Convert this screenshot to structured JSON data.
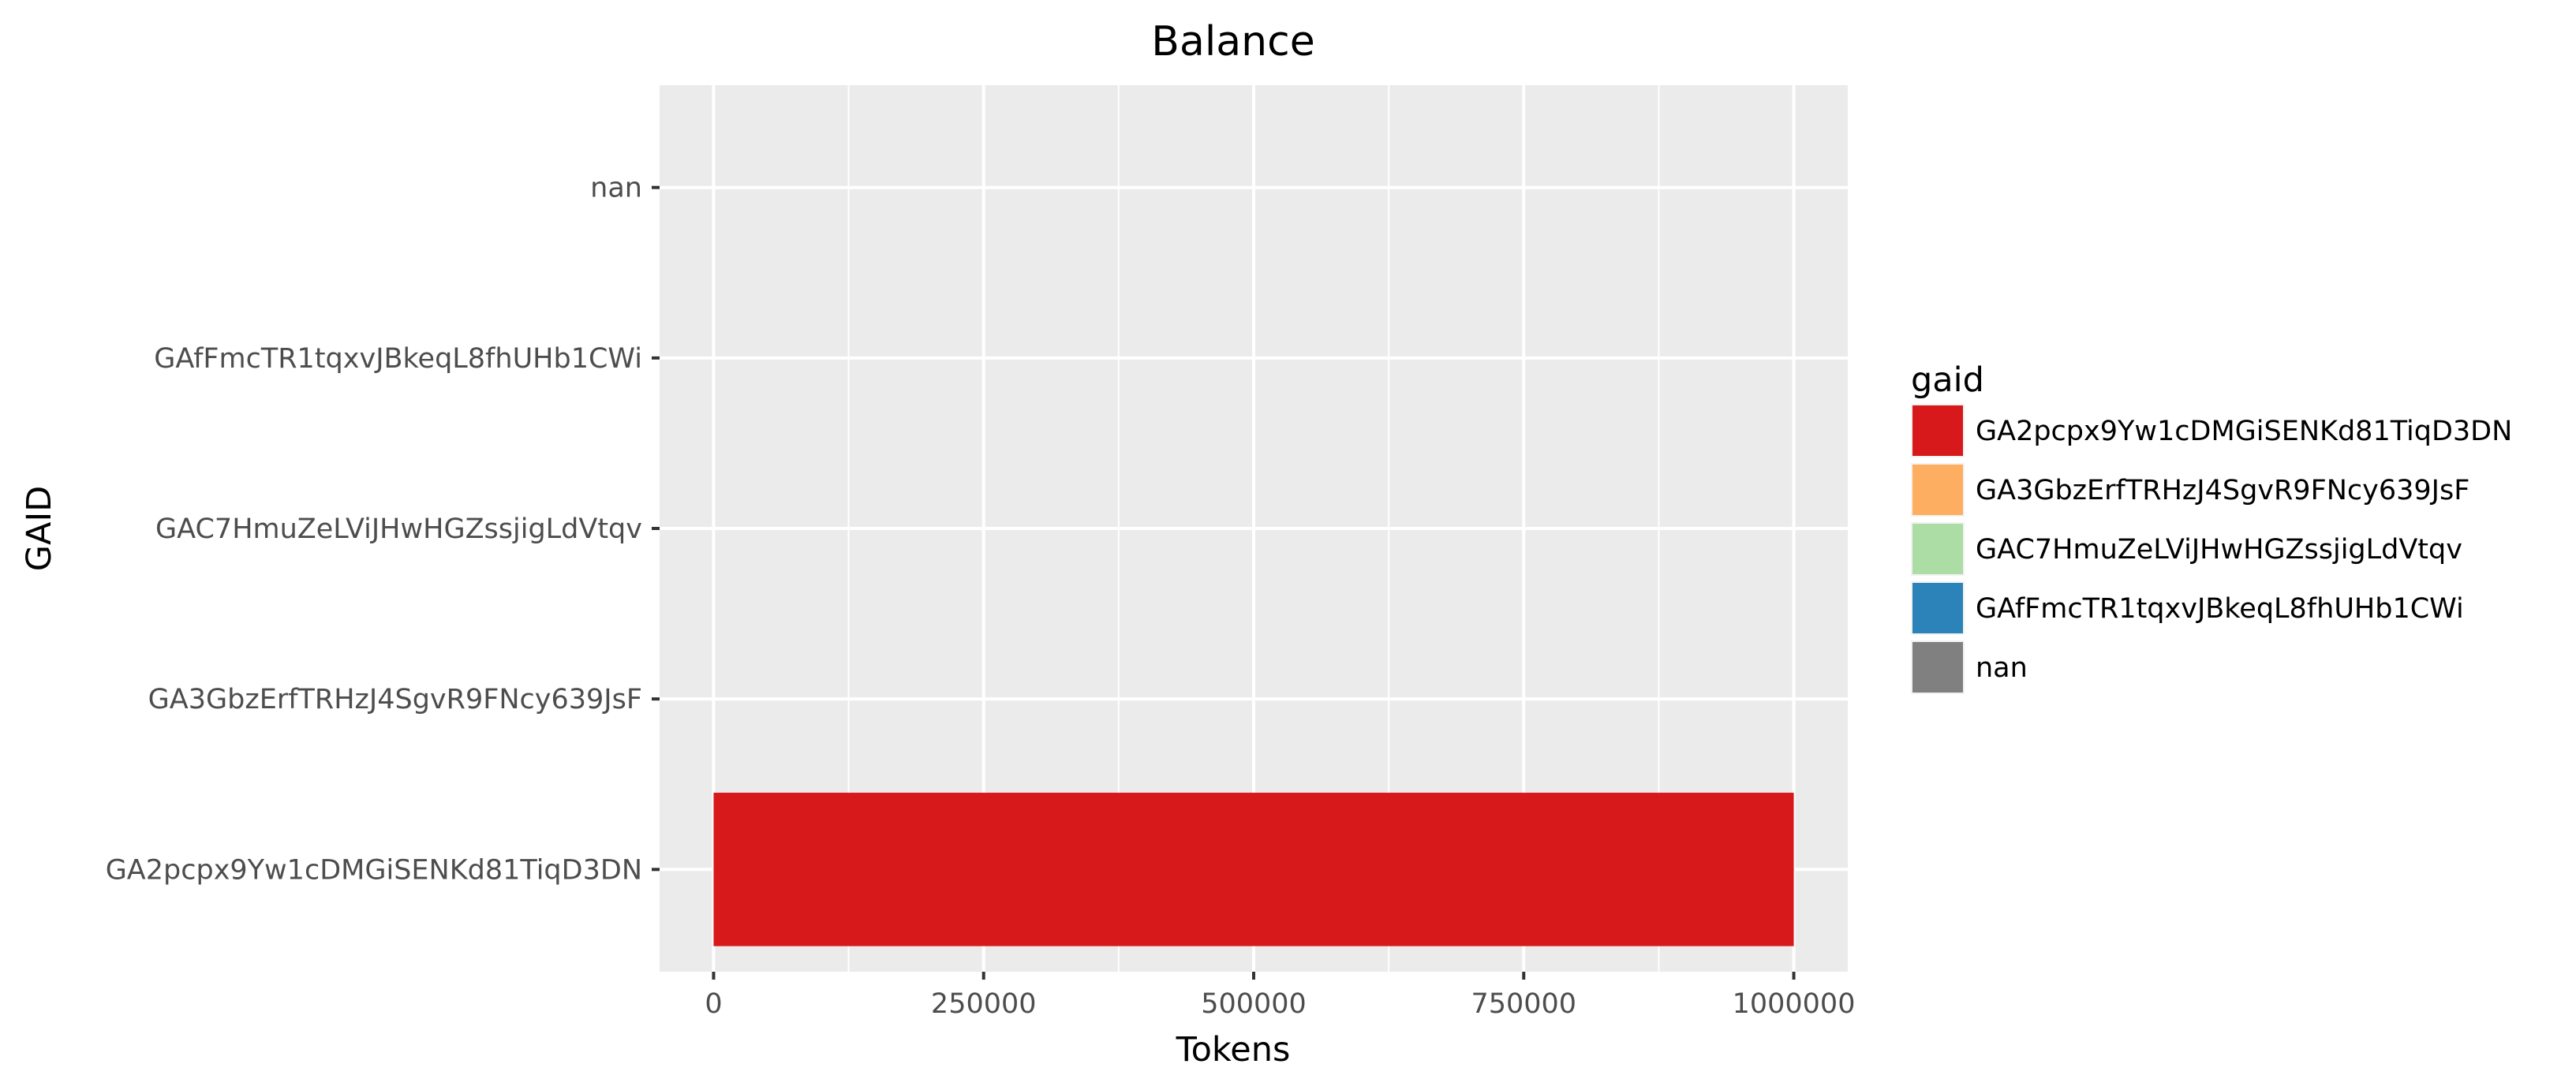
{
  "chart_data": {
    "type": "bar",
    "orientation": "horizontal",
    "title": "Balance",
    "xlabel": "Tokens",
    "ylabel": "GAID",
    "categories": [
      "GA2pcpx9Yw1cDMGiSENKd81TiqD3DN",
      "GA3GbzErfTRHzJ4SgvR9FNcy639JsF",
      "GAC7HmuZeLViJHwHGZssjigLdVtqv",
      "GAfFmcTR1tqxvJBkeqL8fhUHb1CWi",
      "nan"
    ],
    "values": [
      1000000,
      0,
      0,
      0,
      0
    ],
    "xlim": [
      -50000,
      1050000
    ],
    "xticks": [
      0,
      250000,
      500000,
      750000,
      1000000
    ],
    "xtick_labels": [
      "0",
      "250000",
      "500000",
      "750000",
      "1000000"
    ],
    "grid": true,
    "panel_background": "#ebebeb",
    "legend": {
      "title": "gaid",
      "position": "right",
      "entries": [
        {
          "label": "GA2pcpx9Yw1cDMGiSENKd81TiqD3DN",
          "color": "#d7191c"
        },
        {
          "label": "GA3GbzErfTRHzJ4SgvR9FNcy639JsF",
          "color": "#fdae61"
        },
        {
          "label": "GAC7HmuZeLViJHwHGZssjigLdVtqv",
          "color": "#abdda4"
        },
        {
          "label": "GAfFmcTR1tqxvJBkeqL8fhUHb1CWi",
          "color": "#2b83ba"
        },
        {
          "label": "nan",
          "color": "#808080"
        }
      ]
    }
  }
}
